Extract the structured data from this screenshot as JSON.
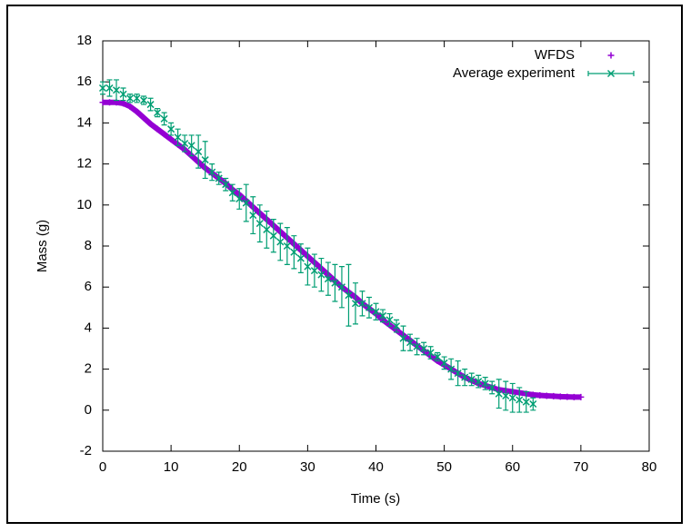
{
  "chart_data": {
    "type": "scatter",
    "xlabel": "Time (s)",
    "ylabel": "Mass (g)",
    "xlim": [
      0,
      80
    ],
    "ylim": [
      -2,
      18
    ],
    "xticks": [
      0,
      10,
      20,
      30,
      40,
      50,
      60,
      70,
      80
    ],
    "yticks": [
      -2,
      0,
      2,
      4,
      6,
      8,
      10,
      12,
      14,
      16,
      18
    ],
    "grid": false,
    "legend": "top-right",
    "series": [
      {
        "name": "WFDS",
        "color": "#9400d3",
        "marker": "plus",
        "x": [
          0,
          1,
          2,
          3,
          4,
          5,
          6,
          7,
          8,
          9,
          10,
          11,
          12,
          13,
          14,
          15,
          16,
          17,
          18,
          19,
          20,
          21,
          22,
          23,
          24,
          25,
          26,
          27,
          28,
          29,
          30,
          31,
          32,
          33,
          34,
          35,
          36,
          37,
          38,
          39,
          40,
          41,
          42,
          43,
          44,
          45,
          46,
          47,
          48,
          49,
          50,
          51,
          52,
          53,
          54,
          55,
          56,
          57,
          58,
          59,
          60,
          61,
          62,
          63,
          64,
          65,
          66,
          67,
          68,
          69,
          70
        ],
        "values": [
          15.0,
          15.0,
          15.0,
          14.95,
          14.8,
          14.55,
          14.25,
          13.95,
          13.7,
          13.45,
          13.2,
          12.95,
          12.7,
          12.4,
          12.1,
          11.8,
          11.55,
          11.3,
          11.05,
          10.75,
          10.5,
          10.2,
          9.9,
          9.6,
          9.3,
          9.0,
          8.7,
          8.4,
          8.1,
          7.8,
          7.5,
          7.2,
          6.9,
          6.6,
          6.3,
          6.0,
          5.75,
          5.5,
          5.2,
          4.95,
          4.7,
          4.4,
          4.15,
          3.9,
          3.65,
          3.4,
          3.15,
          2.9,
          2.65,
          2.4,
          2.2,
          2.0,
          1.8,
          1.6,
          1.45,
          1.3,
          1.2,
          1.1,
          1.0,
          0.95,
          0.9,
          0.85,
          0.8,
          0.75,
          0.72,
          0.7,
          0.68,
          0.66,
          0.65,
          0.64,
          0.64
        ]
      },
      {
        "name": "Average experiment",
        "color": "#009e73",
        "marker": "x",
        "x": [
          0,
          1,
          2,
          3,
          4,
          5,
          6,
          7,
          8,
          9,
          10,
          11,
          12,
          13,
          14,
          15,
          16,
          17,
          18,
          19,
          20,
          21,
          22,
          23,
          24,
          25,
          26,
          27,
          28,
          29,
          30,
          31,
          32,
          33,
          34,
          35,
          36,
          37,
          38,
          39,
          40,
          41,
          42,
          43,
          44,
          45,
          46,
          47,
          48,
          49,
          50,
          51,
          52,
          53,
          54,
          55,
          56,
          57,
          58,
          59,
          60,
          61,
          62,
          63
        ],
        "values": [
          15.7,
          15.7,
          15.6,
          15.4,
          15.2,
          15.2,
          15.1,
          14.9,
          14.5,
          14.2,
          13.7,
          13.3,
          13.0,
          12.9,
          12.6,
          12.2,
          11.6,
          11.3,
          11.0,
          10.6,
          10.3,
          10.1,
          9.5,
          9.1,
          8.8,
          8.5,
          8.2,
          8.0,
          7.7,
          7.4,
          7.0,
          6.8,
          6.6,
          6.4,
          6.2,
          6.0,
          5.6,
          5.2,
          5.2,
          5.0,
          4.8,
          4.6,
          4.4,
          4.1,
          3.5,
          3.3,
          3.1,
          3.0,
          2.8,
          2.6,
          2.3,
          2.0,
          1.8,
          1.6,
          1.5,
          1.4,
          1.3,
          1.1,
          0.8,
          0.7,
          0.6,
          0.5,
          0.4,
          0.3
        ],
        "errors": [
          0.3,
          0.4,
          0.5,
          0.3,
          0.2,
          0.2,
          0.2,
          0.3,
          0.2,
          0.3,
          0.3,
          0.4,
          0.4,
          0.5,
          0.8,
          0.9,
          0.4,
          0.3,
          0.3,
          0.4,
          0.5,
          0.9,
          0.9,
          0.9,
          0.9,
          0.8,
          0.9,
          0.9,
          0.8,
          0.7,
          0.9,
          0.8,
          0.8,
          0.8,
          0.9,
          1.0,
          1.5,
          1.0,
          0.6,
          0.5,
          0.4,
          0.3,
          0.3,
          0.3,
          0.6,
          0.4,
          0.4,
          0.3,
          0.3,
          0.2,
          0.3,
          0.5,
          0.6,
          0.4,
          0.3,
          0.3,
          0.3,
          0.3,
          0.7,
          0.7,
          0.7,
          0.6,
          0.5,
          0.3
        ]
      }
    ]
  }
}
